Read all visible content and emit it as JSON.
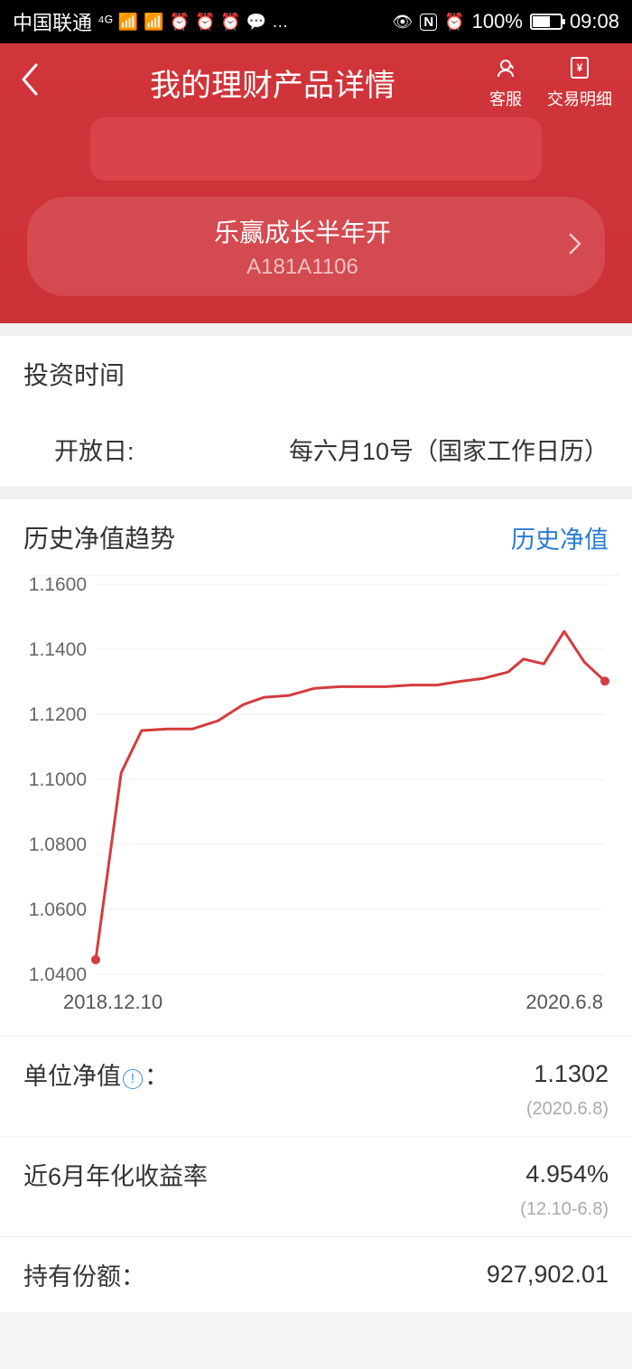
{
  "status_bar": {
    "carrier": "中国联通",
    "nfc": "N",
    "battery_pct": "100%",
    "time": "09:08"
  },
  "header": {
    "title": "我的理财产品详情",
    "actions": {
      "service": "客服",
      "transactions": "交易明细"
    },
    "product": {
      "name": "乐赢成长半年开",
      "code": "A181A1106"
    }
  },
  "invest_time": {
    "title": "投资时间",
    "open_day_label": "开放日:",
    "open_day_value": "每六月10号（国家工作日历）"
  },
  "chart": {
    "title": "历史净值趋势",
    "history_link": "历史净值",
    "type": "line",
    "line_color": "#d43c3c",
    "grid_color": "#eeeeee",
    "axis_text_color": "#666666",
    "background_color": "#ffffff",
    "ylim": [
      1.04,
      1.16
    ],
    "ytick_step": 0.02,
    "yticks": [
      "1.1600",
      "1.1400",
      "1.1200",
      "1.1000",
      "1.0800",
      "1.0600",
      "1.0400"
    ],
    "x_start_label": "2018.12.10",
    "x_end_label": "2020.6.8",
    "line_width": 3,
    "marker_radius": 5,
    "points": [
      [
        0.0,
        1.0445
      ],
      [
        0.05,
        1.102
      ],
      [
        0.09,
        1.115
      ],
      [
        0.14,
        1.1155
      ],
      [
        0.19,
        1.1155
      ],
      [
        0.24,
        1.118
      ],
      [
        0.29,
        1.123
      ],
      [
        0.33,
        1.1252
      ],
      [
        0.38,
        1.1258
      ],
      [
        0.43,
        1.128
      ],
      [
        0.48,
        1.1285
      ],
      [
        0.52,
        1.1285
      ],
      [
        0.57,
        1.1285
      ],
      [
        0.62,
        1.129
      ],
      [
        0.67,
        1.129
      ],
      [
        0.71,
        1.13
      ],
      [
        0.76,
        1.131
      ],
      [
        0.81,
        1.133
      ],
      [
        0.84,
        1.137
      ],
      [
        0.88,
        1.1355
      ],
      [
        0.92,
        1.1455
      ],
      [
        0.96,
        1.136
      ],
      [
        1.0,
        1.1302
      ]
    ]
  },
  "metrics": {
    "unit_nav_label": "单位净值",
    "unit_nav_suffix": "：",
    "unit_nav_value": "1.1302",
    "unit_nav_date": "(2020.6.8)",
    "sixm_label": "近6月年化收益率",
    "sixm_value": "4.954%",
    "sixm_date": "(12.10-6.8)",
    "shares_label": "持有份额：",
    "shares_value": "927,902.01"
  },
  "colors": {
    "red_header": "#d0353a",
    "link_blue": "#2a7bd6"
  }
}
